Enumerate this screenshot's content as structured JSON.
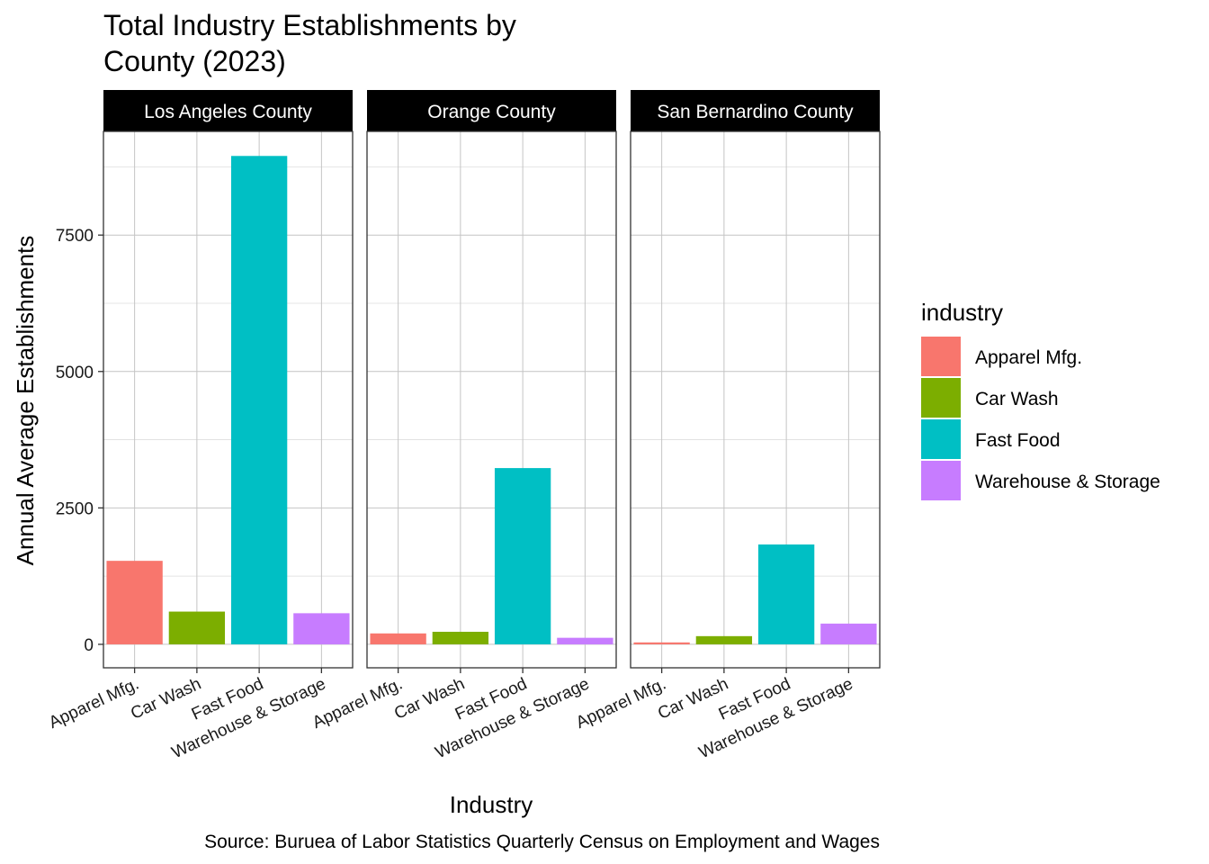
{
  "chart_data": {
    "type": "bar",
    "title_lines": [
      "Total Industry Establishments by",
      "County (2023)"
    ],
    "xlabel": "Industry",
    "ylabel": "Annual Average Establishments",
    "caption": "Source: Buruea of Labor Statistics Quarterly Census on Employment and Wages",
    "categories": [
      "Apparel Mfg.",
      "Car Wash",
      "Fast Food",
      "Warehouse & Storage"
    ],
    "colors": [
      "#F8766D",
      "#7CAE00",
      "#00BFC4",
      "#C77CFF"
    ],
    "ylim": [
      -430,
      9400
    ],
    "yticks": [
      0,
      2500,
      5000,
      7500
    ],
    "grid": true,
    "legend": {
      "title": "industry",
      "position": "right",
      "entries": [
        "Apparel Mfg.",
        "Car Wash",
        "Fast Food",
        "Warehouse & Storage"
      ]
    },
    "facets": [
      {
        "name": "Los Angeles County",
        "values": [
          1530,
          600,
          8950,
          570
        ]
      },
      {
        "name": "Orange County",
        "values": [
          200,
          230,
          3230,
          120
        ]
      },
      {
        "name": "San Bernardino County",
        "values": [
          35,
          150,
          1830,
          380
        ]
      }
    ]
  }
}
